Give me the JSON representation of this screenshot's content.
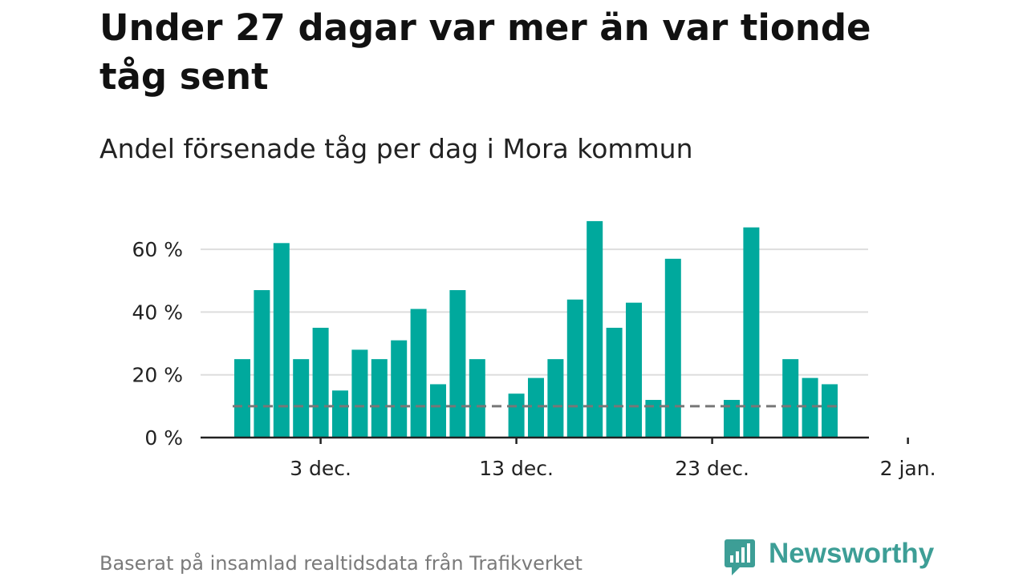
{
  "title": "Under 27 dagar var mer än var tionde tåg sent",
  "subtitle": "Andel försenade tåg per dag i Mora kommun",
  "footer": "Baserat på insamlad realtidsdata från Trafikverket",
  "brand": {
    "name": "Newsworthy",
    "icon": "newsworthy-logo-icon"
  },
  "colors": {
    "bar": "#00a99d",
    "reference_line": "#777777",
    "grid": "#dddddd",
    "axis": "#222222",
    "brand": "#3d9e96"
  },
  "chart_data": {
    "type": "bar",
    "x_unit": "day",
    "categories": [
      "2021-11-29",
      "2021-11-30",
      "2021-12-01",
      "2021-12-02",
      "2021-12-03",
      "2021-12-04",
      "2021-12-05",
      "2021-12-06",
      "2021-12-07",
      "2021-12-08",
      "2021-12-09",
      "2021-12-10",
      "2021-12-11",
      "2021-12-12",
      "2021-12-13",
      "2021-12-14",
      "2021-12-15",
      "2021-12-16",
      "2021-12-17",
      "2021-12-18",
      "2021-12-19",
      "2021-12-20",
      "2021-12-21",
      "2021-12-22",
      "2021-12-23",
      "2021-12-24",
      "2021-12-25",
      "2021-12-26",
      "2021-12-27",
      "2021-12-28",
      "2021-12-29",
      "2021-12-30",
      "2021-12-31",
      "2022-01-01"
    ],
    "values": [
      25,
      47,
      62,
      25,
      35,
      15,
      28,
      25,
      31,
      41,
      17,
      47,
      25,
      0,
      14,
      19,
      25,
      44,
      69,
      35,
      43,
      12,
      57,
      0,
      0,
      12,
      67,
      0,
      25,
      19,
      17,
      0,
      0,
      0
    ],
    "reference_line": {
      "value": 10,
      "style": "dashed"
    },
    "ylim": [
      0,
      70
    ],
    "yticks": [
      0,
      20,
      40,
      60
    ],
    "ytick_labels": [
      "0 %",
      "20 %",
      "40 %",
      "60 %"
    ],
    "xticks": [
      "2021-12-03",
      "2021-12-13",
      "2021-12-23",
      "2022-01-02"
    ],
    "xtick_labels": [
      "3 dec.",
      "13 dec.",
      "23 dec.",
      "2 jan."
    ],
    "grid": true,
    "legend": "none",
    "xlabel": "",
    "ylabel": ""
  }
}
